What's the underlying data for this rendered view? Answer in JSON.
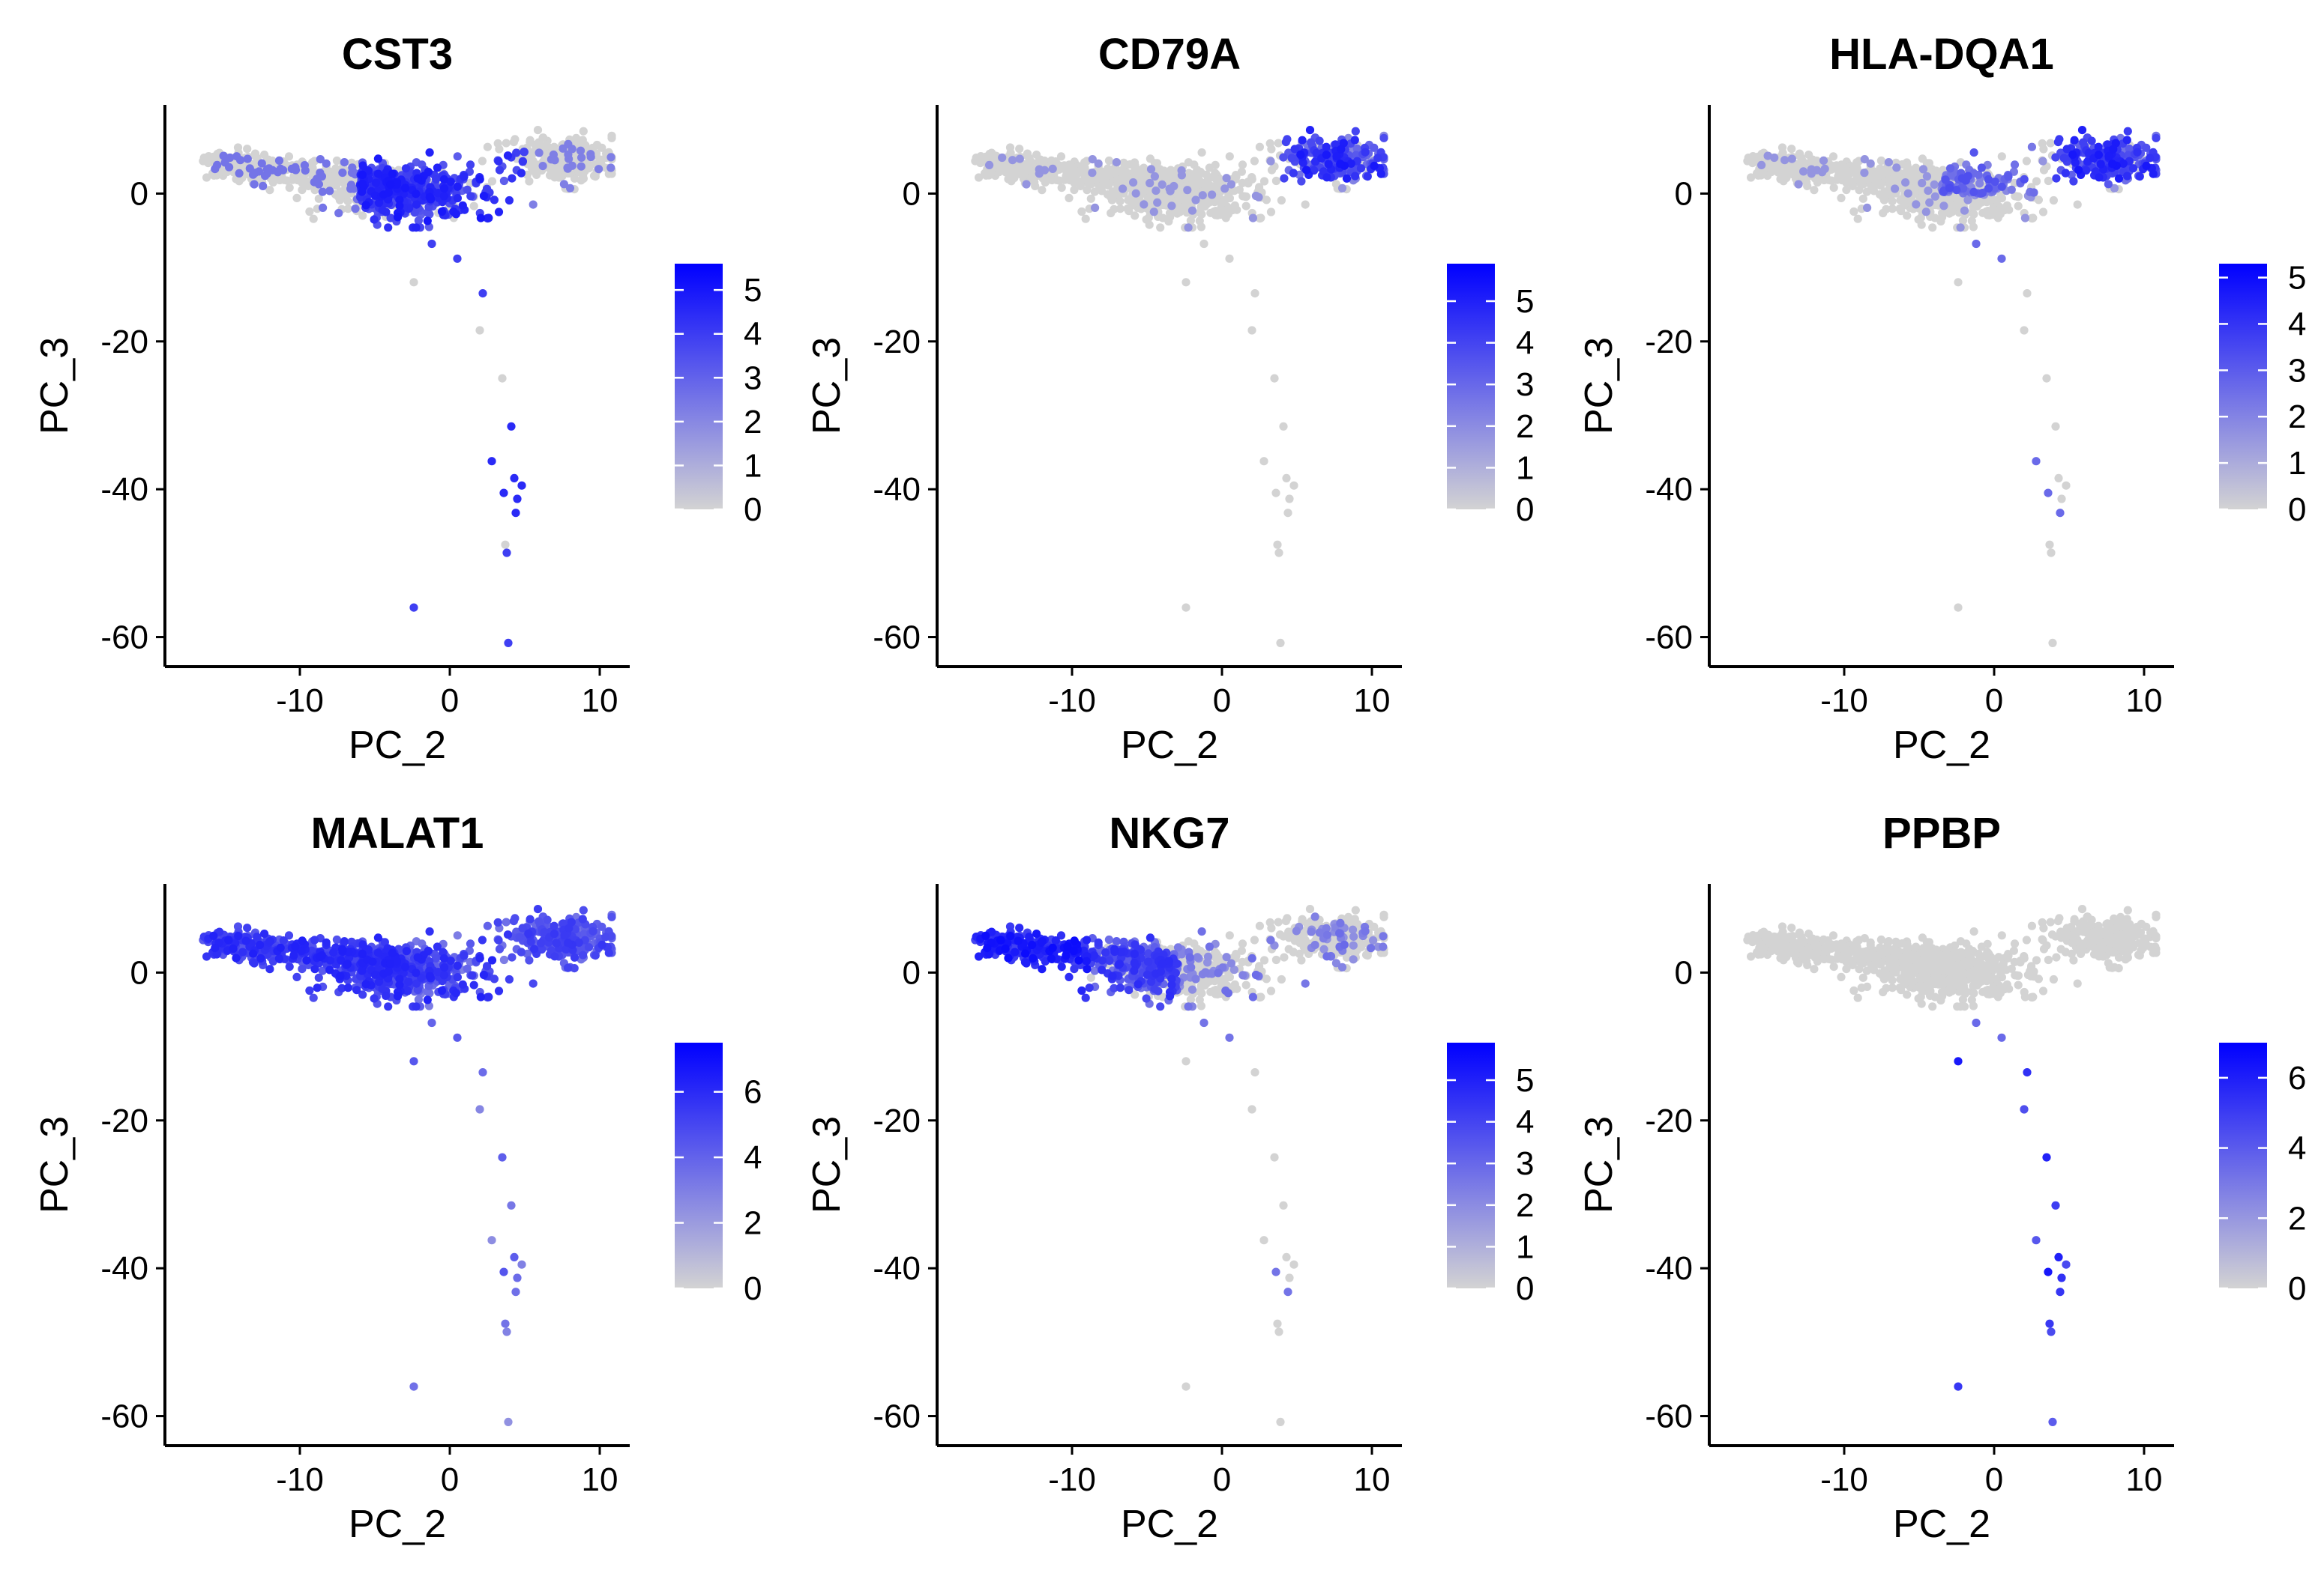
{
  "chart_data": [
    {
      "type": "scatter",
      "title": "CST3",
      "xlabel": "PC_2",
      "ylabel": "PC_3",
      "xlim": [
        -19,
        12
      ],
      "ylim": [
        -64,
        12
      ],
      "xticks": [
        -10,
        0,
        10
      ],
      "yticks": [
        0,
        -20,
        -40,
        -60
      ],
      "tick_labels_x": [
        "-10",
        "0",
        "10"
      ],
      "tick_labels_y": [
        "0",
        "-20",
        "-40",
        "-60"
      ],
      "colorbar": {
        "min": 0,
        "max": 5.6,
        "ticks": [
          0,
          1,
          2,
          3,
          4,
          5
        ],
        "tick_labels": [
          "0",
          "1",
          "2",
          "3",
          "4",
          "5"
        ],
        "low_color": "#d3d3d3",
        "high_color": "#0000ff"
      },
      "profile": "cst3"
    },
    {
      "type": "scatter",
      "title": "CD79A",
      "xlabel": "PC_2",
      "ylabel": "PC_3",
      "xlim": [
        -19,
        12
      ],
      "ylim": [
        -64,
        12
      ],
      "xticks": [
        -10,
        0,
        10
      ],
      "yticks": [
        0,
        -20,
        -40,
        -60
      ],
      "tick_labels_x": [
        "-10",
        "0",
        "10"
      ],
      "tick_labels_y": [
        "0",
        "-20",
        "-40",
        "-60"
      ],
      "colorbar": {
        "min": 0,
        "max": 5.9,
        "ticks": [
          0,
          1,
          2,
          3,
          4,
          5
        ],
        "tick_labels": [
          "0",
          "1",
          "2",
          "3",
          "4",
          "5"
        ],
        "low_color": "#d3d3d3",
        "high_color": "#0000ff"
      },
      "profile": "cd79a"
    },
    {
      "type": "scatter",
      "title": "HLA-DQA1",
      "xlabel": "PC_2",
      "ylabel": "PC_3",
      "xlim": [
        -19,
        12
      ],
      "ylim": [
        -64,
        12
      ],
      "xticks": [
        -10,
        0,
        10
      ],
      "yticks": [
        0,
        -20,
        -40,
        -60
      ],
      "tick_labels_x": [
        "-10",
        "0",
        "10"
      ],
      "tick_labels_y": [
        "0",
        "-20",
        "-40",
        "-60"
      ],
      "colorbar": {
        "min": 0,
        "max": 5.3,
        "ticks": [
          0,
          1,
          2,
          3,
          4,
          5
        ],
        "tick_labels": [
          "0",
          "1",
          "2",
          "3",
          "4",
          "5"
        ],
        "low_color": "#d3d3d3",
        "high_color": "#0000ff"
      },
      "profile": "hla"
    },
    {
      "type": "scatter",
      "title": "MALAT1",
      "xlabel": "PC_2",
      "ylabel": "PC_3",
      "xlim": [
        -19,
        12
      ],
      "ylim": [
        -64,
        12
      ],
      "xticks": [
        -10,
        0,
        10
      ],
      "yticks": [
        0,
        -20,
        -40,
        -60
      ],
      "tick_labels_x": [
        "-10",
        "0",
        "10"
      ],
      "tick_labels_y": [
        "0",
        "-20",
        "-40",
        "-60"
      ],
      "colorbar": {
        "min": 0,
        "max": 7.5,
        "ticks": [
          0,
          2,
          4,
          6
        ],
        "tick_labels": [
          "0",
          "2",
          "4",
          "6"
        ],
        "low_color": "#d3d3d3",
        "high_color": "#0000ff"
      },
      "profile": "malat1"
    },
    {
      "type": "scatter",
      "title": "NKG7",
      "xlabel": "PC_2",
      "ylabel": "PC_3",
      "xlim": [
        -19,
        12
      ],
      "ylim": [
        -64,
        12
      ],
      "xticks": [
        -10,
        0,
        10
      ],
      "yticks": [
        0,
        -20,
        -40,
        -60
      ],
      "tick_labels_x": [
        "-10",
        "0",
        "10"
      ],
      "tick_labels_y": [
        "0",
        "-20",
        "-40",
        "-60"
      ],
      "colorbar": {
        "min": 0,
        "max": 5.9,
        "ticks": [
          0,
          1,
          2,
          3,
          4,
          5
        ],
        "tick_labels": [
          "0",
          "1",
          "2",
          "3",
          "4",
          "5"
        ],
        "low_color": "#d3d3d3",
        "high_color": "#0000ff"
      },
      "profile": "nkg7"
    },
    {
      "type": "scatter",
      "title": "PPBP",
      "xlabel": "PC_2",
      "ylabel": "PC_3",
      "xlim": [
        -19,
        12
      ],
      "ylim": [
        -64,
        12
      ],
      "xticks": [
        -10,
        0,
        10
      ],
      "yticks": [
        0,
        -20,
        -40,
        -60
      ],
      "tick_labels_x": [
        "-10",
        "0",
        "10"
      ],
      "tick_labels_y": [
        "0",
        "-20",
        "-40",
        "-60"
      ],
      "colorbar": {
        "min": 0,
        "max": 7.0,
        "ticks": [
          0,
          2,
          4,
          6
        ],
        "tick_labels": [
          "0",
          "2",
          "4",
          "6"
        ],
        "low_color": "#d3d3d3",
        "high_color": "#0000ff"
      },
      "profile": "ppbp"
    }
  ],
  "tail_points": [
    {
      "x": -1.2,
      "y": -6.8
    },
    {
      "x": 0.5,
      "y": -8.8
    },
    {
      "x": -2.4,
      "y": -12.0
    },
    {
      "x": 2.2,
      "y": -13.5
    },
    {
      "x": 2.0,
      "y": -18.5
    },
    {
      "x": 3.5,
      "y": -25.0
    },
    {
      "x": 4.1,
      "y": -31.5
    },
    {
      "x": 2.8,
      "y": -36.2
    },
    {
      "x": 4.3,
      "y": -38.5
    },
    {
      "x": 4.8,
      "y": -39.5
    },
    {
      "x": 3.6,
      "y": -40.5
    },
    {
      "x": 4.5,
      "y": -41.3
    },
    {
      "x": 4.4,
      "y": -43.2
    },
    {
      "x": 3.7,
      "y": -47.5
    },
    {
      "x": 3.8,
      "y": -48.6
    },
    {
      "x": -2.4,
      "y": -56.0
    },
    {
      "x": 3.9,
      "y": -60.8
    }
  ]
}
